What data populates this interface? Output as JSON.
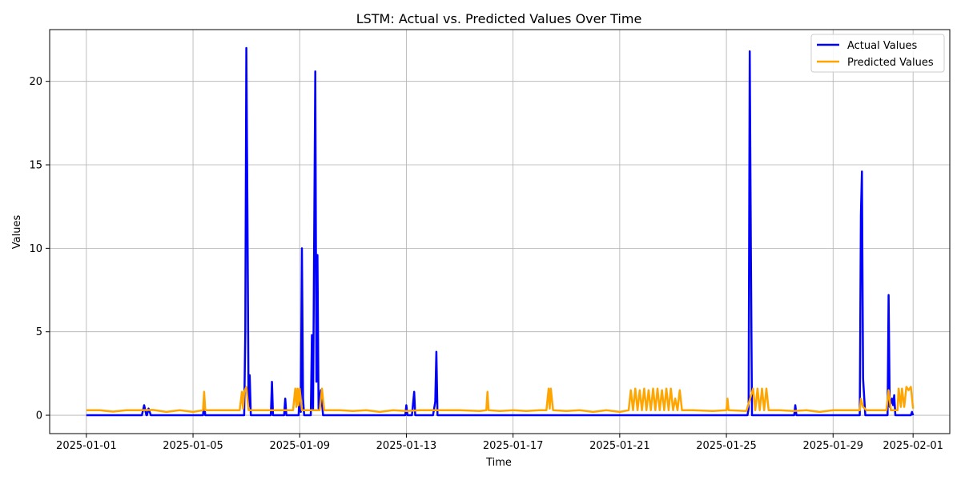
{
  "chart_data": {
    "type": "line",
    "title": "LSTM: Actual vs. Predicted Values Over Time",
    "xlabel": "Time",
    "ylabel": "Values",
    "xlim": [
      "2025-01-01",
      "2025-02-01"
    ],
    "ylim": [
      -1.1,
      23.1
    ],
    "x_ticks": [
      "2025-01-01",
      "2025-01-05",
      "2025-01-09",
      "2025-01-13",
      "2025-01-17",
      "2025-01-21",
      "2025-01-25",
      "2025-01-29",
      "2025-02-01"
    ],
    "y_ticks": [
      0,
      5,
      10,
      15,
      20
    ],
    "grid": true,
    "legend_position": "top-right",
    "series": [
      {
        "name": "Actual Values",
        "color": "#0000ff",
        "points": [
          [
            "2025-01-01",
            0
          ],
          [
            "2025-01-03 02:00",
            0
          ],
          [
            "2025-01-03 04:00",
            0.6
          ],
          [
            "2025-01-03 06:00",
            0
          ],
          [
            "2025-01-03 06:30",
            0
          ],
          [
            "2025-01-03 08:00",
            0.4
          ],
          [
            "2025-01-03 10:00",
            0
          ],
          [
            "2025-01-05 09:00",
            0
          ],
          [
            "2025-01-05 10:00",
            0.8
          ],
          [
            "2025-01-05 11:00",
            0
          ],
          [
            "2025-01-06 22:00",
            0
          ],
          [
            "2025-01-06 23:00",
            5.0
          ],
          [
            "2025-01-07 00:00",
            22.0
          ],
          [
            "2025-01-07 01:00",
            12.0
          ],
          [
            "2025-01-07 02:00",
            0.5
          ],
          [
            "2025-01-07 03:00",
            2.4
          ],
          [
            "2025-01-07 04:00",
            0
          ],
          [
            "2025-01-07 22:00",
            0
          ],
          [
            "2025-01-07 23:00",
            2.0
          ],
          [
            "2025-01-08 00:00",
            0
          ],
          [
            "2025-01-08 10:00",
            0
          ],
          [
            "2025-01-08 11:00",
            1.0
          ],
          [
            "2025-01-08 12:00",
            0
          ],
          [
            "2025-01-08 23:00",
            0
          ],
          [
            "2025-01-09 00:00",
            1.5
          ],
          [
            "2025-01-09 01:00",
            0.2
          ],
          [
            "2025-01-09 02:00",
            10.0
          ],
          [
            "2025-01-09 03:00",
            1.0
          ],
          [
            "2025-01-09 04:00",
            0
          ],
          [
            "2025-01-09 10:00",
            0
          ],
          [
            "2025-01-09 11:00",
            4.8
          ],
          [
            "2025-01-09 12:00",
            0.3
          ],
          [
            "2025-01-09 14:00",
            20.6
          ],
          [
            "2025-01-09 15:00",
            2.0
          ],
          [
            "2025-01-09 16:00",
            9.6
          ],
          [
            "2025-01-09 17:00",
            0.4
          ],
          [
            "2025-01-09 19:00",
            1.5
          ],
          [
            "2025-01-09 21:00",
            0
          ],
          [
            "2025-01-12 23:00",
            0
          ],
          [
            "2025-01-13 00:00",
            0.6
          ],
          [
            "2025-01-13 01:00",
            0
          ],
          [
            "2025-01-13 05:00",
            0
          ],
          [
            "2025-01-13 07:00",
            1.4
          ],
          [
            "2025-01-13 08:00",
            0
          ],
          [
            "2025-01-14 00:00",
            0
          ],
          [
            "2025-01-14 02:00",
            0.8
          ],
          [
            "2025-01-14 03:00",
            3.8
          ],
          [
            "2025-01-14 04:00",
            0
          ],
          [
            "2025-01-25 19:00",
            0
          ],
          [
            "2025-01-25 20:00",
            0.4
          ],
          [
            "2025-01-25 21:00",
            21.8
          ],
          [
            "2025-01-25 22:00",
            10.0
          ],
          [
            "2025-01-25 23:00",
            0
          ],
          [
            "2025-01-27 13:00",
            0
          ],
          [
            "2025-01-27 14:00",
            0.6
          ],
          [
            "2025-01-27 15:00",
            0
          ],
          [
            "2025-01-30 00:00",
            0
          ],
          [
            "2025-01-30 01:00",
            12.0
          ],
          [
            "2025-01-30 02:00",
            14.6
          ],
          [
            "2025-01-30 03:00",
            2.2
          ],
          [
            "2025-01-30 05:00",
            0
          ],
          [
            "2025-01-31 01:00",
            0
          ],
          [
            "2025-01-31 02:00",
            7.2
          ],
          [
            "2025-01-31 03:00",
            0.5
          ],
          [
            "2025-01-31 05:00",
            1.0
          ],
          [
            "2025-01-31 06:00",
            0.6
          ],
          [
            "2025-01-31 07:00",
            1.2
          ],
          [
            "2025-01-31 08:00",
            0
          ],
          [
            "2025-01-31 22:00",
            0
          ],
          [
            "2025-01-31 23:00",
            0.2
          ],
          [
            "2025-02-01",
            0
          ]
        ]
      },
      {
        "name": "Predicted Values",
        "color": "#ffa500",
        "points": [
          [
            "2025-01-01",
            0.3
          ],
          [
            "2025-01-01 12:00",
            0.3
          ],
          [
            "2025-01-02 00:00",
            0.22
          ],
          [
            "2025-01-02 12:00",
            0.3
          ],
          [
            "2025-01-03 00:00",
            0.3
          ],
          [
            "2025-01-03 12:00",
            0.32
          ],
          [
            "2025-01-04 00:00",
            0.2
          ],
          [
            "2025-01-04 12:00",
            0.3
          ],
          [
            "2025-01-05 00:00",
            0.2
          ],
          [
            "2025-01-05 09:00",
            0.3
          ],
          [
            "2025-01-05 10:00",
            1.4
          ],
          [
            "2025-01-05 11:00",
            0.3
          ],
          [
            "2025-01-06 00:00",
            0.3
          ],
          [
            "2025-01-06 18:00",
            0.3
          ],
          [
            "2025-01-06 20:00",
            1.4
          ],
          [
            "2025-01-06 21:00",
            0.4
          ],
          [
            "2025-01-06 22:00",
            1.4
          ],
          [
            "2025-01-07 00:00",
            1.7
          ],
          [
            "2025-01-07 02:00",
            0.3
          ],
          [
            "2025-01-07 12:00",
            0.3
          ],
          [
            "2025-01-08 00:00",
            0.3
          ],
          [
            "2025-01-08 12:00",
            0.3
          ],
          [
            "2025-01-08 18:00",
            0.3
          ],
          [
            "2025-01-08 20:00",
            1.6
          ],
          [
            "2025-01-08 21:00",
            0.5
          ],
          [
            "2025-01-08 22:00",
            1.6
          ],
          [
            "2025-01-08 23:00",
            0.6
          ],
          [
            "2025-01-09 00:00",
            1.6
          ],
          [
            "2025-01-09 02:00",
            0.3
          ],
          [
            "2025-01-09 18:00",
            0.3
          ],
          [
            "2025-01-09 20:00",
            1.6
          ],
          [
            "2025-01-09 22:00",
            0.3
          ],
          [
            "2025-01-10 12:00",
            0.3
          ],
          [
            "2025-01-11 00:00",
            0.25
          ],
          [
            "2025-01-11 12:00",
            0.3
          ],
          [
            "2025-01-12 00:00",
            0.2
          ],
          [
            "2025-01-12 12:00",
            0.3
          ],
          [
            "2025-01-13 00:00",
            0.25
          ],
          [
            "2025-01-13 12:00",
            0.3
          ],
          [
            "2025-01-14 00:00",
            0.3
          ],
          [
            "2025-01-15 00:00",
            0.3
          ],
          [
            "2025-01-15 18:00",
            0.25
          ],
          [
            "2025-01-16 00:00",
            0.3
          ],
          [
            "2025-01-16 01:00",
            1.4
          ],
          [
            "2025-01-16 02:00",
            0.3
          ],
          [
            "2025-01-16 12:00",
            0.25
          ],
          [
            "2025-01-17 00:00",
            0.3
          ],
          [
            "2025-01-17 12:00",
            0.25
          ],
          [
            "2025-01-18 00:00",
            0.3
          ],
          [
            "2025-01-18 06:00",
            0.3
          ],
          [
            "2025-01-18 08:00",
            1.6
          ],
          [
            "2025-01-18 09:00",
            0.4
          ],
          [
            "2025-01-18 10:00",
            1.6
          ],
          [
            "2025-01-18 12:00",
            0.3
          ],
          [
            "2025-01-19 00:00",
            0.25
          ],
          [
            "2025-01-19 12:00",
            0.3
          ],
          [
            "2025-01-20 00:00",
            0.2
          ],
          [
            "2025-01-20 12:00",
            0.3
          ],
          [
            "2025-01-21 00:00",
            0.2
          ],
          [
            "2025-01-21 08:00",
            0.3
          ],
          [
            "2025-01-21 10:00",
            1.5
          ],
          [
            "2025-01-21 12:00",
            0.3
          ],
          [
            "2025-01-21 14:00",
            1.6
          ],
          [
            "2025-01-21 16:00",
            0.3
          ],
          [
            "2025-01-21 18:00",
            1.5
          ],
          [
            "2025-01-21 20:00",
            0.3
          ],
          [
            "2025-01-21 22:00",
            1.6
          ],
          [
            "2025-01-22 00:00",
            0.3
          ],
          [
            "2025-01-22 02:00",
            1.5
          ],
          [
            "2025-01-22 04:00",
            0.3
          ],
          [
            "2025-01-22 06:00",
            1.6
          ],
          [
            "2025-01-22 08:00",
            0.3
          ],
          [
            "2025-01-22 10:00",
            1.6
          ],
          [
            "2025-01-22 12:00",
            0.3
          ],
          [
            "2025-01-22 14:00",
            1.5
          ],
          [
            "2025-01-22 16:00",
            0.3
          ],
          [
            "2025-01-22 18:00",
            1.6
          ],
          [
            "2025-01-22 20:00",
            0.3
          ],
          [
            "2025-01-22 22:00",
            1.6
          ],
          [
            "2025-01-23 00:00",
            0.3
          ],
          [
            "2025-01-23 02:00",
            1.0
          ],
          [
            "2025-01-23 04:00",
            0.3
          ],
          [
            "2025-01-23 06:00",
            1.5
          ],
          [
            "2025-01-23 08:00",
            0.3
          ],
          [
            "2025-01-23 18:00",
            0.3
          ],
          [
            "2025-01-24 12:00",
            0.25
          ],
          [
            "2025-01-25 00:00",
            0.3
          ],
          [
            "2025-01-25 01:00",
            1.0
          ],
          [
            "2025-01-25 02:00",
            0.3
          ],
          [
            "2025-01-25 18:00",
            0.25
          ],
          [
            "2025-01-26 00:00",
            1.6
          ],
          [
            "2025-01-26 02:00",
            0.3
          ],
          [
            "2025-01-26 04:00",
            1.6
          ],
          [
            "2025-01-26 06:00",
            0.3
          ],
          [
            "2025-01-26 08:00",
            1.6
          ],
          [
            "2025-01-26 10:00",
            0.3
          ],
          [
            "2025-01-26 12:00",
            1.6
          ],
          [
            "2025-01-26 14:00",
            0.3
          ],
          [
            "2025-01-27 00:00",
            0.3
          ],
          [
            "2025-01-27 12:00",
            0.25
          ],
          [
            "2025-01-28 00:00",
            0.3
          ],
          [
            "2025-01-28 12:00",
            0.2
          ],
          [
            "2025-01-29 00:00",
            0.3
          ],
          [
            "2025-01-29 12:00",
            0.3
          ],
          [
            "2025-01-30 00:00",
            0.3
          ],
          [
            "2025-01-30 01:00",
            1.0
          ],
          [
            "2025-01-30 03:00",
            0.5
          ],
          [
            "2025-01-30 06:00",
            0.3
          ],
          [
            "2025-01-30 18:00",
            0.3
          ],
          [
            "2025-01-31 00:00",
            0.3
          ],
          [
            "2025-01-31 02:00",
            1.5
          ],
          [
            "2025-01-31 04:00",
            0.3
          ],
          [
            "2025-01-31 10:00",
            0.3
          ],
          [
            "2025-01-31 11:00",
            1.6
          ],
          [
            "2025-01-31 13:00",
            0.5
          ],
          [
            "2025-01-31 14:00",
            1.6
          ],
          [
            "2025-01-31 16:00",
            0.5
          ],
          [
            "2025-01-31 18:00",
            1.7
          ],
          [
            "2025-01-31 20:00",
            1.5
          ],
          [
            "2025-01-31 22:00",
            1.7
          ],
          [
            "2025-02-01",
            0.4
          ]
        ]
      }
    ]
  }
}
